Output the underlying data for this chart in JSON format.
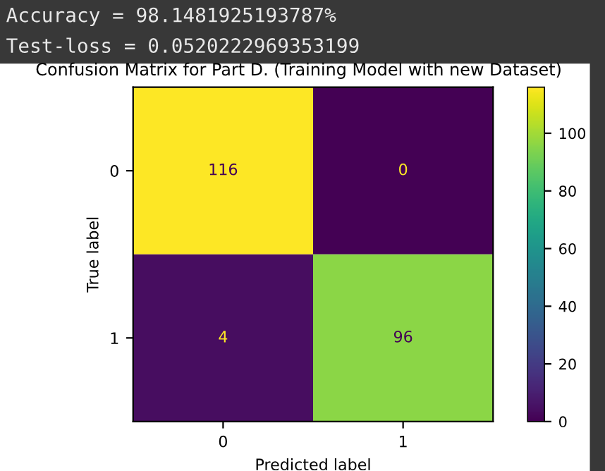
{
  "chart_data": {
    "type": "heatmap",
    "title": "Confusion Matrix for Part D. (Training Model with new Dataset)",
    "xlabel": "Predicted label",
    "ylabel": "True label",
    "categories": [
      "0",
      "1"
    ],
    "y_categories": [
      "0",
      "1"
    ],
    "cells": [
      [
        116,
        0
      ],
      [
        4,
        96
      ]
    ],
    "clim": [
      0,
      116
    ],
    "data_labels": true,
    "cticks": [
      0,
      20,
      40,
      60,
      80,
      100
    ],
    "annotations": [
      "Accuracy = 98.1481925193787%",
      "Test-loss = 0.0520222969353199"
    ]
  }
}
